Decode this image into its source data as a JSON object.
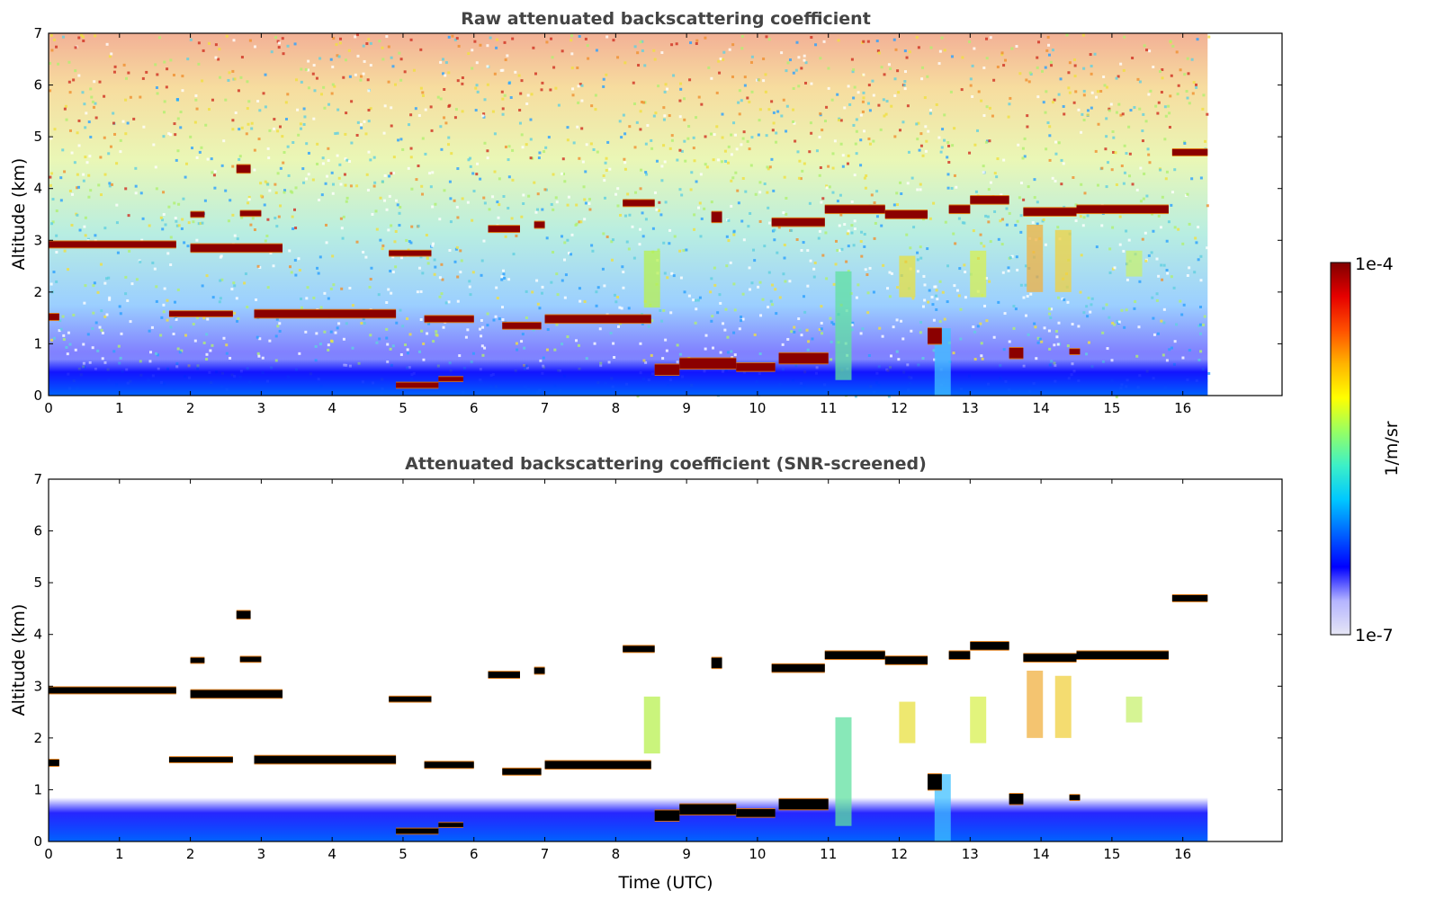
{
  "chart_data": [
    {
      "type": "heatmap",
      "title": "Raw attenuated backscattering coefficient",
      "xlabel": "",
      "ylabel": "Altitude (km)",
      "xlim": [
        0,
        17.4
      ],
      "ylim": [
        0,
        7
      ],
      "x_ticks": [
        "0",
        "1",
        "2",
        "3",
        "4",
        "5",
        "6",
        "7",
        "8",
        "9",
        "10",
        "11",
        "12",
        "13",
        "14",
        "15",
        "16"
      ],
      "y_ticks": [
        "0",
        "1",
        "2",
        "3",
        "4",
        "5",
        "6",
        "7"
      ],
      "data_extent_time": [
        0,
        16.35
      ],
      "grid": false,
      "color_scale": "log",
      "layers": [
        {
          "name": "cloud",
          "x0": 0.0,
          "x1": 1.8,
          "y": 2.92,
          "thickness": 0.12
        },
        {
          "name": "cloud",
          "x0": 2.0,
          "x1": 3.3,
          "y": 2.85,
          "thickness": 0.15
        },
        {
          "name": "cloud",
          "x0": 2.65,
          "x1": 2.85,
          "y": 4.38,
          "thickness": 0.15
        },
        {
          "name": "cloud",
          "x0": 2.0,
          "x1": 2.2,
          "y": 3.5,
          "thickness": 0.1
        },
        {
          "name": "cloud",
          "x0": 2.7,
          "x1": 3.0,
          "y": 3.52,
          "thickness": 0.1
        },
        {
          "name": "cloud",
          "x0": 0.0,
          "x1": 0.15,
          "y": 1.52,
          "thickness": 0.12
        },
        {
          "name": "cloud",
          "x0": 1.7,
          "x1": 2.6,
          "y": 1.58,
          "thickness": 0.1
        },
        {
          "name": "cloud",
          "x0": 2.9,
          "x1": 4.9,
          "y": 1.58,
          "thickness": 0.15
        },
        {
          "name": "cloud",
          "x0": 5.3,
          "x1": 6.0,
          "y": 1.48,
          "thickness": 0.12
        },
        {
          "name": "cloud",
          "x0": 6.4,
          "x1": 6.95,
          "y": 1.35,
          "thickness": 0.12
        },
        {
          "name": "cloud",
          "x0": 7.0,
          "x1": 8.5,
          "y": 1.48,
          "thickness": 0.15
        },
        {
          "name": "cloud",
          "x0": 4.9,
          "x1": 5.5,
          "y": 0.2,
          "thickness": 0.1
        },
        {
          "name": "cloud",
          "x0": 5.5,
          "x1": 5.85,
          "y": 0.32,
          "thickness": 0.08
        },
        {
          "name": "cloud",
          "x0": 4.8,
          "x1": 5.4,
          "y": 2.75,
          "thickness": 0.1
        },
        {
          "name": "cloud",
          "x0": 6.2,
          "x1": 6.65,
          "y": 3.22,
          "thickness": 0.12
        },
        {
          "name": "cloud",
          "x0": 6.85,
          "x1": 7.0,
          "y": 3.3,
          "thickness": 0.12
        },
        {
          "name": "cloud",
          "x0": 8.1,
          "x1": 8.55,
          "y": 3.72,
          "thickness": 0.12
        },
        {
          "name": "cloud",
          "x0": 9.35,
          "x1": 9.5,
          "y": 3.45,
          "thickness": 0.2
        },
        {
          "name": "cloud",
          "x0": 10.2,
          "x1": 10.95,
          "y": 3.35,
          "thickness": 0.15
        },
        {
          "name": "cloud",
          "x0": 10.95,
          "x1": 11.8,
          "y": 3.6,
          "thickness": 0.15
        },
        {
          "name": "cloud",
          "x0": 11.8,
          "x1": 12.4,
          "y": 3.5,
          "thickness": 0.15
        },
        {
          "name": "cloud",
          "x0": 12.7,
          "x1": 13.0,
          "y": 3.6,
          "thickness": 0.15
        },
        {
          "name": "cloud",
          "x0": 13.0,
          "x1": 13.55,
          "y": 3.78,
          "thickness": 0.15
        },
        {
          "name": "cloud",
          "x0": 13.75,
          "x1": 14.5,
          "y": 3.55,
          "thickness": 0.15
        },
        {
          "name": "cloud",
          "x0": 14.5,
          "x1": 15.8,
          "y": 3.6,
          "thickness": 0.15
        },
        {
          "name": "cloud",
          "x0": 15.85,
          "x1": 16.35,
          "y": 4.7,
          "thickness": 0.12
        },
        {
          "name": "cloud",
          "x0": 8.55,
          "x1": 8.9,
          "y": 0.5,
          "thickness": 0.2
        },
        {
          "name": "cloud",
          "x0": 8.9,
          "x1": 9.7,
          "y": 0.62,
          "thickness": 0.2
        },
        {
          "name": "cloud",
          "x0": 9.7,
          "x1": 10.25,
          "y": 0.55,
          "thickness": 0.15
        },
        {
          "name": "cloud",
          "x0": 10.3,
          "x1": 11.0,
          "y": 0.72,
          "thickness": 0.2
        },
        {
          "name": "cloud",
          "x0": 12.4,
          "x1": 12.6,
          "y": 1.15,
          "thickness": 0.3
        },
        {
          "name": "cloud",
          "x0": 13.55,
          "x1": 13.75,
          "y": 0.82,
          "thickness": 0.2
        },
        {
          "name": "cloud",
          "x0": 14.4,
          "x1": 14.55,
          "y": 0.85,
          "thickness": 0.1
        }
      ]
    },
    {
      "type": "heatmap",
      "title": "Attenuated backscattering coefficient (SNR-screened)",
      "xlabel": "Time (UTC)",
      "ylabel": "Altitude (km)",
      "xlim": [
        0,
        17.4
      ],
      "ylim": [
        0,
        7
      ],
      "x_ticks": [
        "0",
        "1",
        "2",
        "3",
        "4",
        "5",
        "6",
        "7",
        "8",
        "9",
        "10",
        "11",
        "12",
        "13",
        "14",
        "15",
        "16"
      ],
      "y_ticks": [
        "0",
        "1",
        "2",
        "3",
        "4",
        "5",
        "6",
        "7"
      ],
      "data_extent_time": [
        0,
        16.35
      ],
      "grid": false,
      "color_scale": "log",
      "screened": true
    }
  ],
  "colorbar": {
    "label": "1/m/sr",
    "min_label": "1e-7",
    "max_label": "1e-4",
    "colormap": "jet",
    "stops": [
      "#e6e6f5",
      "#b4b4ff",
      "#0000ff",
      "#0064ff",
      "#00c8ff",
      "#3cf0c8",
      "#96ff64",
      "#ffff00",
      "#ffb400",
      "#ff5000",
      "#e60000",
      "#800000"
    ]
  },
  "colors": {
    "title": "#444444",
    "cloud_core": "#8b0000",
    "cloud_core_screened": "#000000"
  }
}
